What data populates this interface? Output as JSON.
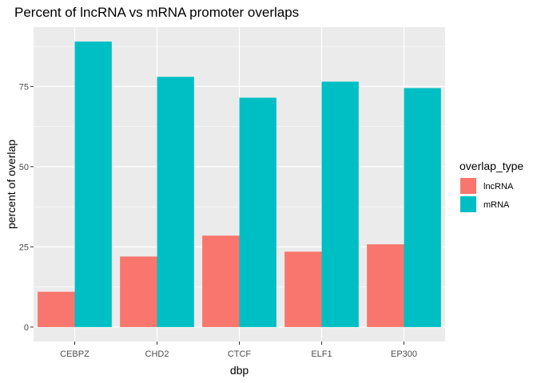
{
  "chart_data": {
    "type": "bar",
    "title": "Percent of lncRNA vs mRNA promoter overlaps",
    "xlabel": "dbp",
    "ylabel": "percent of overlap",
    "categories": [
      "CEBPZ",
      "CHD2",
      "CTCF",
      "ELF1",
      "EP300"
    ],
    "series": [
      {
        "name": "lncRNA",
        "values": [
          11,
          22,
          28.5,
          23.5,
          25.8
        ],
        "color": "#F8766D"
      },
      {
        "name": "mRNA",
        "values": [
          89,
          78,
          71.5,
          76.5,
          74.5
        ],
        "color": "#00BFC4"
      }
    ],
    "yticks": [
      0,
      25,
      50,
      75
    ],
    "ylim": [
      -4.5,
      93.5
    ],
    "grid": true,
    "legend": {
      "title": "overlap_type",
      "position": "right"
    },
    "panel_background": "#EBEBEB"
  }
}
